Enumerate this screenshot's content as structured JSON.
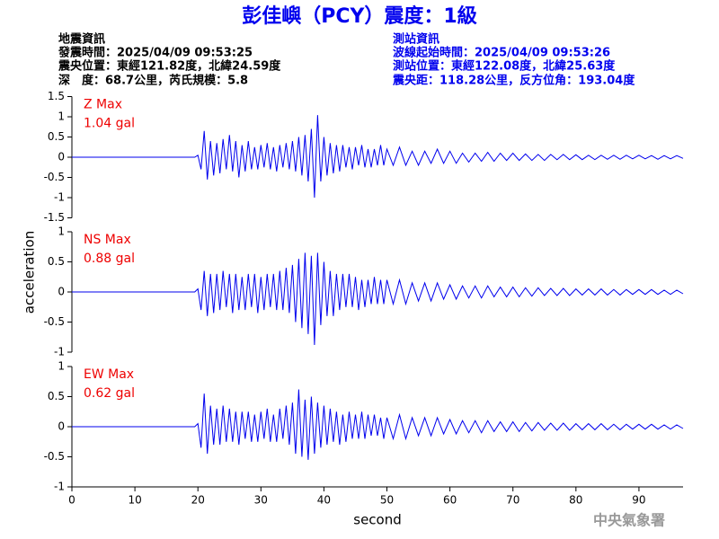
{
  "header": {
    "title": "彭佳嶼（PCY）震度：1級",
    "event_info": [
      "地震資訊",
      "發震時間：2025/04/09 09:53:25",
      "震央位置：東經121.82度，北緯24.59度",
      "深　度：68.7公里，芮氏規模：5.8"
    ],
    "station_info": [
      "測站資訊",
      "波線起始時間：2025/04/09 09:53:26",
      "測站位置：東經122.08度，北緯25.63度",
      "震央距：118.28公里，反方位角：193.04度"
    ]
  },
  "footer": "中央氣象署",
  "chart_data": [
    {
      "type": "line",
      "annotations": [
        "Z Max",
        "1.04 gal"
      ],
      "color": "#0000ee",
      "xlim": [
        0,
        97
      ],
      "ylim": [
        -1.5,
        1.5
      ],
      "yticks": [
        1.5,
        1,
        0.5,
        0,
        -0.5,
        -1,
        -1.5
      ],
      "x": [
        0,
        10,
        19.5,
        20,
        20.5,
        21,
        21.5,
        22,
        22.5,
        23,
        23.5,
        24,
        24.5,
        25,
        25.5,
        26,
        26.5,
        27,
        27.5,
        28,
        28.5,
        29,
        29.5,
        30,
        30.5,
        31,
        31.5,
        32,
        32.5,
        33,
        33.5,
        34,
        34.5,
        35,
        35.5,
        36,
        36.5,
        37,
        37.5,
        38,
        38.5,
        39,
        39.5,
        40,
        40.5,
        41,
        41.5,
        42,
        42.5,
        43,
        43.5,
        44,
        44.5,
        45,
        45.5,
        46,
        46.5,
        47,
        47.5,
        48,
        48.5,
        49,
        49.5,
        50,
        51,
        52,
        53,
        54,
        55,
        56,
        57,
        58,
        59,
        60,
        61,
        62,
        63,
        64,
        65,
        66,
        67,
        68,
        69,
        70,
        71,
        72,
        73,
        74,
        75,
        76,
        77,
        78,
        79,
        80,
        81,
        82,
        83,
        84,
        85,
        86,
        87,
        88,
        89,
        90,
        91,
        92,
        93,
        94,
        95,
        96,
        97
      ],
      "values": [
        0,
        0,
        0,
        0.05,
        -0.3,
        0.65,
        -0.55,
        0.4,
        -0.45,
        0.35,
        -0.4,
        0.45,
        -0.3,
        0.55,
        -0.35,
        0.4,
        -0.5,
        0.3,
        -0.35,
        0.4,
        -0.3,
        0.25,
        -0.3,
        0.3,
        -0.25,
        0.35,
        -0.3,
        0.25,
        -0.35,
        0.3,
        -0.25,
        0.35,
        -0.3,
        0.4,
        -0.35,
        0.5,
        -0.45,
        0.55,
        -0.6,
        0.7,
        -1.0,
        1.04,
        -0.6,
        0.5,
        -0.45,
        0.35,
        -0.4,
        0.3,
        -0.35,
        0.3,
        -0.25,
        0.25,
        -0.3,
        0.25,
        -0.2,
        0.3,
        -0.25,
        0.2,
        -0.25,
        0.2,
        -0.2,
        0.3,
        -0.2,
        0.2,
        -0.2,
        0.25,
        -0.2,
        0.15,
        -0.2,
        0.15,
        -0.15,
        0.2,
        -0.15,
        0.15,
        -0.15,
        0.1,
        -0.12,
        0.1,
        -0.1,
        0.12,
        -0.1,
        0.1,
        -0.08,
        0.1,
        -0.08,
        0.08,
        -0.08,
        0.07,
        -0.08,
        0.07,
        -0.06,
        0.07,
        -0.06,
        0.06,
        -0.06,
        0.05,
        -0.06,
        0.05,
        -0.05,
        0.05,
        -0.05,
        0.05,
        -0.04,
        0.05,
        -0.04,
        0.04,
        -0.05,
        0.04,
        -0.04,
        0.04,
        -0.03
      ]
    },
    {
      "type": "line",
      "annotations": [
        "NS Max",
        "0.88 gal"
      ],
      "ylabel": "acceleration",
      "color": "#0000ee",
      "xlim": [
        0,
        97
      ],
      "ylim": [
        -1,
        1
      ],
      "yticks": [
        1,
        0.5,
        0,
        -0.5,
        -1
      ],
      "x": [
        0,
        10,
        19.5,
        20,
        20.5,
        21,
        21.5,
        22,
        22.5,
        23,
        23.5,
        24,
        24.5,
        25,
        25.5,
        26,
        26.5,
        27,
        27.5,
        28,
        28.5,
        29,
        29.5,
        30,
        30.5,
        31,
        31.5,
        32,
        32.5,
        33,
        33.5,
        34,
        34.5,
        35,
        35.5,
        36,
        36.5,
        37,
        37.5,
        38,
        38.5,
        39,
        39.5,
        40,
        40.5,
        41,
        41.5,
        42,
        42.5,
        43,
        43.5,
        44,
        44.5,
        45,
        45.5,
        46,
        46.5,
        47,
        47.5,
        48,
        48.5,
        49,
        49.5,
        50,
        51,
        52,
        53,
        54,
        55,
        56,
        57,
        58,
        59,
        60,
        61,
        62,
        63,
        64,
        65,
        66,
        67,
        68,
        69,
        70,
        71,
        72,
        73,
        74,
        75,
        76,
        77,
        78,
        79,
        80,
        81,
        82,
        83,
        84,
        85,
        86,
        87,
        88,
        89,
        90,
        91,
        92,
        93,
        94,
        95,
        96,
        97
      ],
      "values": [
        0,
        0,
        0,
        0.05,
        -0.3,
        0.35,
        -0.4,
        0.3,
        -0.35,
        0.3,
        -0.3,
        0.35,
        -0.25,
        0.3,
        -0.35,
        0.3,
        -0.3,
        0.25,
        -0.3,
        0.3,
        -0.25,
        0.3,
        -0.35,
        0.25,
        -0.3,
        0.3,
        -0.25,
        0.3,
        -0.3,
        0.35,
        -0.3,
        0.4,
        -0.35,
        0.45,
        -0.5,
        0.55,
        -0.6,
        0.65,
        -0.7,
        0.6,
        -0.88,
        0.65,
        -0.55,
        0.5,
        -0.4,
        0.35,
        -0.4,
        0.3,
        -0.3,
        0.3,
        -0.25,
        0.3,
        -0.25,
        0.25,
        -0.3,
        0.2,
        -0.25,
        0.2,
        -0.2,
        0.25,
        -0.2,
        0.2,
        -0.2,
        0.2,
        -0.2,
        0.2,
        -0.2,
        0.15,
        -0.15,
        0.15,
        -0.15,
        0.15,
        -0.12,
        0.12,
        -0.12,
        0.1,
        -0.1,
        0.1,
        -0.1,
        0.1,
        -0.08,
        0.08,
        -0.08,
        0.08,
        -0.08,
        0.07,
        -0.07,
        0.07,
        -0.06,
        0.06,
        -0.06,
        0.06,
        -0.06,
        0.05,
        -0.05,
        0.05,
        -0.05,
        0.05,
        -0.05,
        0.04,
        -0.05,
        0.04,
        -0.04,
        0.04,
        -0.04,
        0.04,
        -0.04,
        0.03,
        -0.04,
        0.03,
        -0.03
      ]
    },
    {
      "type": "line",
      "annotations": [
        "EW Max",
        "0.62 gal"
      ],
      "xlabel": "second",
      "color": "#0000ee",
      "xlim": [
        0,
        97
      ],
      "ylim": [
        -1,
        1
      ],
      "yticks": [
        1,
        0.5,
        0,
        -0.5,
        -1
      ],
      "xticks": [
        0,
        10,
        20,
        30,
        40,
        50,
        60,
        70,
        80,
        90
      ],
      "x": [
        0,
        10,
        19.5,
        20,
        20.5,
        21,
        21.5,
        22,
        22.5,
        23,
        23.5,
        24,
        24.5,
        25,
        25.5,
        26,
        26.5,
        27,
        27.5,
        28,
        28.5,
        29,
        29.5,
        30,
        30.5,
        31,
        31.5,
        32,
        32.5,
        33,
        33.5,
        34,
        34.5,
        35,
        35.5,
        36,
        36.5,
        37,
        37.5,
        38,
        38.5,
        39,
        39.5,
        40,
        40.5,
        41,
        41.5,
        42,
        42.5,
        43,
        43.5,
        44,
        44.5,
        45,
        45.5,
        46,
        46.5,
        47,
        47.5,
        48,
        48.5,
        49,
        49.5,
        50,
        51,
        52,
        53,
        54,
        55,
        56,
        57,
        58,
        59,
        60,
        61,
        62,
        63,
        64,
        65,
        66,
        67,
        68,
        69,
        70,
        71,
        72,
        73,
        74,
        75,
        76,
        77,
        78,
        79,
        80,
        81,
        82,
        83,
        84,
        85,
        86,
        87,
        88,
        89,
        90,
        91,
        92,
        93,
        94,
        95,
        96,
        97
      ],
      "values": [
        0,
        0,
        0,
        0.05,
        -0.35,
        0.55,
        -0.45,
        0.35,
        -0.3,
        0.3,
        -0.3,
        0.35,
        -0.25,
        0.3,
        -0.25,
        0.25,
        -0.3,
        0.25,
        -0.2,
        0.25,
        -0.25,
        0.2,
        -0.25,
        0.25,
        -0.2,
        0.3,
        -0.25,
        0.2,
        -0.25,
        0.3,
        -0.2,
        0.35,
        -0.3,
        0.4,
        -0.45,
        0.62,
        -0.5,
        0.45,
        -0.55,
        0.5,
        -0.45,
        0.4,
        -0.35,
        0.35,
        -0.3,
        0.3,
        -0.25,
        0.25,
        -0.3,
        0.2,
        -0.25,
        0.25,
        -0.2,
        0.2,
        -0.2,
        0.25,
        -0.2,
        0.2,
        -0.15,
        0.2,
        -0.15,
        0.15,
        -0.2,
        0.15,
        -0.2,
        0.2,
        -0.2,
        0.15,
        -0.15,
        0.15,
        -0.15,
        0.15,
        -0.12,
        0.12,
        -0.12,
        0.1,
        -0.1,
        0.1,
        -0.1,
        0.1,
        -0.08,
        0.08,
        -0.08,
        0.08,
        -0.08,
        0.07,
        -0.07,
        0.07,
        -0.06,
        0.06,
        -0.06,
        0.06,
        -0.06,
        0.05,
        -0.05,
        0.05,
        -0.05,
        0.05,
        -0.05,
        0.04,
        -0.05,
        0.04,
        -0.04,
        0.04,
        -0.04,
        0.04,
        -0.04,
        0.03,
        -0.04,
        0.03,
        -0.03
      ]
    }
  ]
}
